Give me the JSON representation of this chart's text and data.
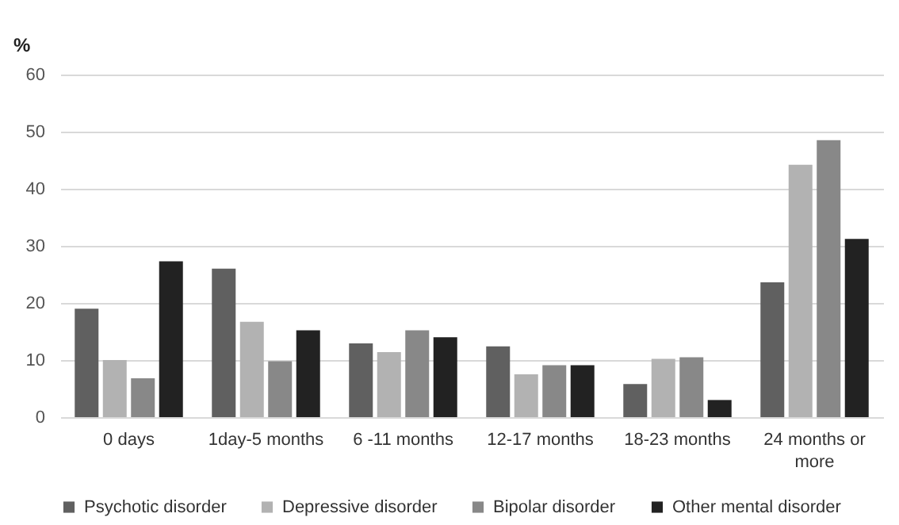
{
  "chart_data": {
    "type": "bar",
    "ylabel": "%",
    "categories": [
      "0 days",
      "1day-5 months",
      "6 -11 months",
      "12-17 months",
      "18-23 months",
      "24 months or more"
    ],
    "series": [
      {
        "name": "Psychotic disorder",
        "color": "#606060",
        "values": [
          19,
          26,
          12.9,
          12.4,
          5.8,
          23.6
        ]
      },
      {
        "name": "Depressive disorder",
        "color": "#b2b2b2",
        "values": [
          10,
          16.7,
          11.4,
          7.5,
          10.2,
          44.2
        ]
      },
      {
        "name": "Bipolar disorder",
        "color": "#888888",
        "values": [
          6.8,
          9.8,
          15.2,
          9.1,
          10.5,
          48.5
        ]
      },
      {
        "name": "Other mental disorder",
        "color": "#222222",
        "values": [
          27.3,
          15.2,
          14.0,
          9.1,
          3.0,
          31.2
        ]
      }
    ],
    "ylim": [
      0,
      60
    ],
    "yticks": [
      0,
      10,
      20,
      30,
      40,
      50,
      60
    ],
    "grid": "y",
    "legend": "bottom"
  }
}
